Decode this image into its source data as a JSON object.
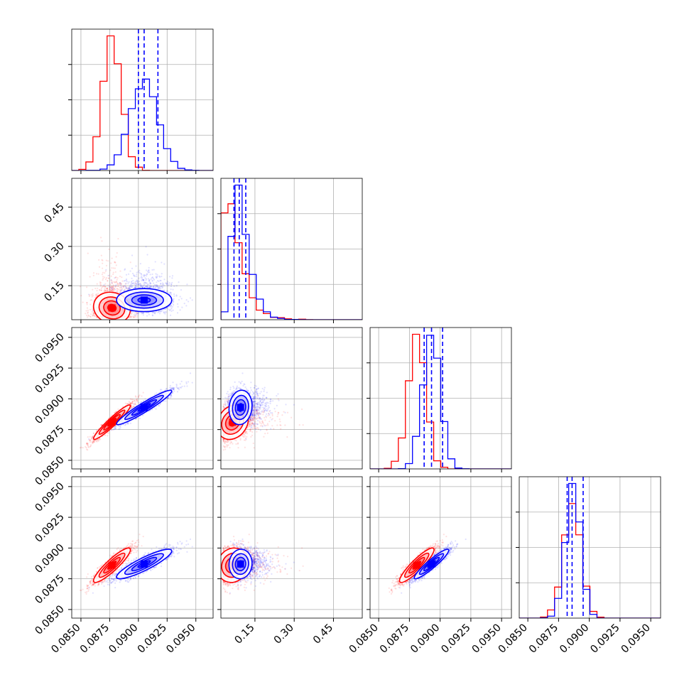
{
  "colors": {
    "series_a": "#ff0000",
    "series_b": "#0000ff",
    "grid": "#b0b0b0",
    "frame": "#000000"
  },
  "chart_data": {
    "type": "corner",
    "grid": true,
    "axes": [
      {
        "range": [
          0.0842,
          0.0965
        ],
        "ticks": [
          0.085,
          0.0875,
          0.09,
          0.0925,
          0.095
        ],
        "tick_labels": [
          "0.0850",
          "0.0875",
          "0.0900",
          "0.0925",
          "0.0950"
        ]
      },
      {
        "range": [
          0.02,
          0.56
        ],
        "ticks": [
          0.15,
          0.3,
          0.45
        ],
        "tick_labels": [
          "0.15",
          "0.30",
          "0.45"
        ]
      },
      {
        "range": [
          0.0843,
          0.0958
        ],
        "ticks": [
          0.085,
          0.0875,
          0.09,
          0.0925,
          0.095
        ],
        "tick_labels": [
          "0.0850",
          "0.0875",
          "0.0900",
          "0.0925",
          "0.0950"
        ]
      },
      {
        "range": [
          0.0843,
          0.0958
        ],
        "ticks": [
          0.085,
          0.0875,
          0.09,
          0.0925,
          0.095
        ],
        "tick_labels": [
          "0.0850",
          "0.0875",
          "0.0900",
          "0.0925",
          "0.0950"
        ]
      }
    ],
    "series": [
      {
        "color": "#ff0000",
        "mean": [
          0.0877,
          0.065,
          0.0881,
          0.0886
        ],
        "sd": [
          0.0008,
          0.045,
          0.0007,
          0.0007
        ],
        "corr": [
          [
            0,
            1,
            -0.1
          ],
          [
            0,
            2,
            0.95
          ],
          [
            0,
            3,
            0.9
          ],
          [
            1,
            2,
            0.2
          ],
          [
            1,
            3,
            0.1
          ],
          [
            2,
            3,
            0.9
          ]
        ]
      },
      {
        "color": "#0000ff",
        "mean": [
          0.0905,
          0.095,
          0.0893,
          0.0887
        ],
        "sd": [
          0.0012,
          0.022,
          0.0007,
          0.0006
        ],
        "corr": [
          [
            0,
            1,
            0.0
          ],
          [
            0,
            2,
            0.95
          ],
          [
            0,
            3,
            0.88
          ],
          [
            1,
            2,
            0.1
          ],
          [
            1,
            3,
            0.05
          ],
          [
            2,
            3,
            0.93
          ]
        ]
      }
    ],
    "quantiles": [
      [
        0.09,
        0.0905,
        0.0917
      ],
      [
        0.07,
        0.09,
        0.115
      ],
      [
        0.0887,
        0.0893,
        0.0902
      ],
      [
        0.0882,
        0.0886,
        0.0895
      ]
    ]
  }
}
